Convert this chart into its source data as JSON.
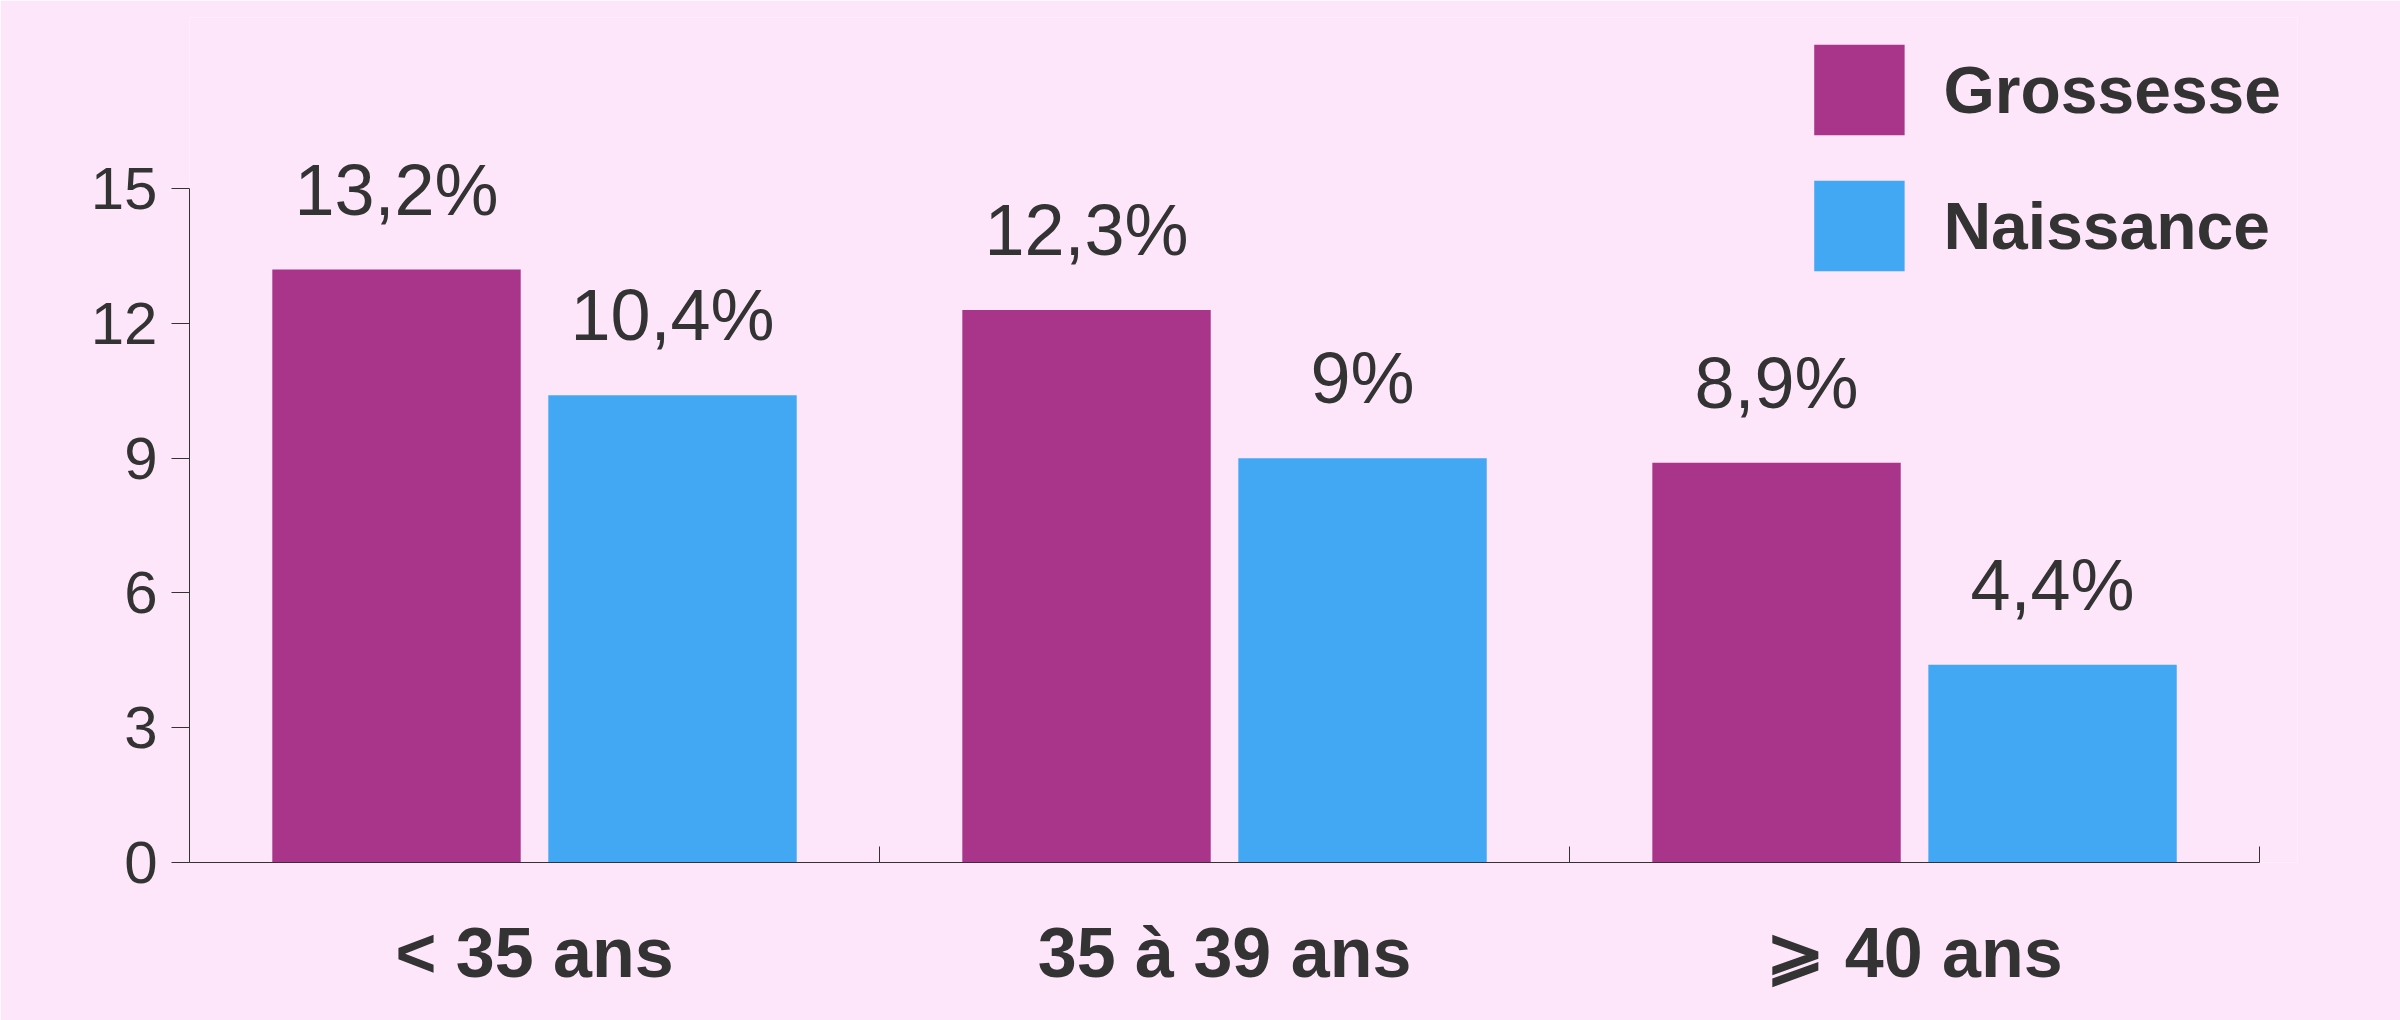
{
  "chart_data": {
    "type": "bar",
    "categories": [
      "< 35 ans",
      "35 à 39 ans",
      "⩾ 40 ans"
    ],
    "series": [
      {
        "name": "Grossesse",
        "color": "#a83589",
        "values": [
          13.2,
          12.3,
          8.9
        ],
        "value_labels": [
          "13,2%",
          "12,3%",
          "8,9%"
        ]
      },
      {
        "name": "Naissance",
        "color": "#42a8f3",
        "values": [
          10.4,
          9,
          4.4
        ],
        "value_labels": [
          "10,4%",
          "9%",
          "4,4%"
        ]
      }
    ],
    "ylim": [
      0,
      15
    ],
    "yticks": [
      0,
      3,
      6,
      9,
      12,
      15
    ],
    "legend": "top right"
  }
}
